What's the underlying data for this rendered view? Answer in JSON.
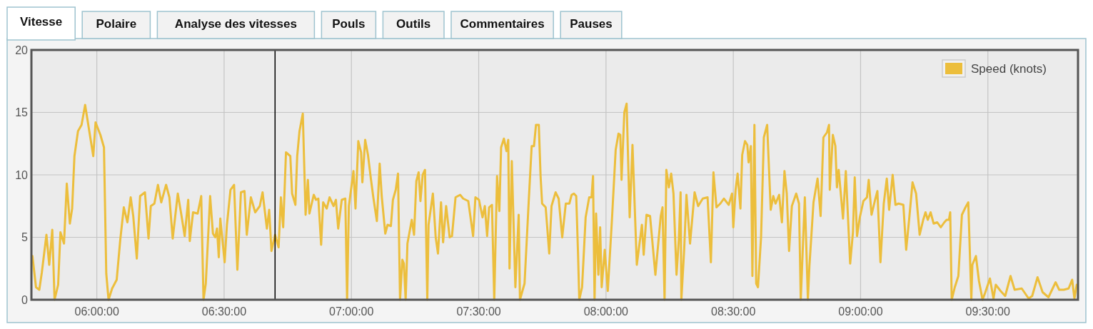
{
  "chart_data": {
    "type": "line",
    "annotations": [
      "Vitesse",
      "Polaire",
      "Analyse des vitesses",
      "Pouls",
      "Outils",
      "Commentaires",
      "Pauses"
    ],
    "xlim": [
      5.743,
      9.854
    ],
    "ylim": [
      0,
      20
    ],
    "xticks": [
      {
        "value": 6,
        "label": "06:00:00"
      },
      {
        "value": 6.5,
        "label": "06:30:00"
      },
      {
        "value": 7,
        "label": "07:00:00"
      },
      {
        "value": 7.5,
        "label": "07:30:00"
      },
      {
        "value": 8,
        "label": "08:00:00"
      },
      {
        "value": 8.5,
        "label": "08:30:00"
      },
      {
        "value": 9,
        "label": "09:00:00"
      },
      {
        "value": 9.5,
        "label": "09:30:00"
      }
    ],
    "yticks": [
      0,
      5,
      10,
      15,
      20
    ],
    "grid": true,
    "legend": "top right",
    "marker": "none",
    "line_style": "solid",
    "ref_lines": [
      {
        "axis": "x",
        "value": 6.7,
        "color": "#000000"
      }
    ],
    "series": [
      {
        "name": "Speed (knots)",
        "color": "#ecbe3c",
        "x": [
          5.747,
          5.761,
          5.774,
          5.784,
          5.802,
          5.813,
          5.825,
          5.834,
          5.848,
          5.857,
          5.871,
          5.882,
          5.894,
          5.903,
          5.912,
          5.926,
          5.94,
          5.954,
          5.968,
          5.986,
          5.995,
          6.014,
          6.028,
          6.037,
          6.046,
          6.06,
          6.078,
          6.092,
          6.106,
          6.12,
          6.133,
          6.143,
          6.157,
          6.17,
          6.189,
          6.203,
          6.212,
          6.226,
          6.24,
          6.253,
          6.272,
          6.285,
          6.298,
          6.318,
          6.332,
          6.345,
          6.359,
          6.365,
          6.378,
          6.396,
          6.41,
          6.419,
          6.428,
          6.437,
          6.445,
          6.456,
          6.465,
          6.472,
          6.479,
          6.485,
          6.502,
          6.511,
          6.525,
          6.539,
          6.552,
          6.566,
          6.58,
          6.589,
          6.605,
          6.622,
          6.64,
          6.651,
          6.668,
          6.677,
          6.686,
          6.7,
          6.714,
          6.723,
          6.732,
          6.743,
          6.76,
          6.767,
          6.78,
          6.787,
          6.796,
          6.809,
          6.82,
          6.829,
          6.835,
          6.852,
          6.861,
          6.87,
          6.881,
          6.889,
          6.903,
          6.914,
          6.93,
          6.939,
          6.948,
          6.962,
          6.976,
          6.983,
          6.99,
          7.008,
          7.016,
          7.027,
          7.038,
          7.043,
          7.054,
          7.065,
          7.077,
          7.086,
          7.1,
          7.111,
          7.119,
          7.133,
          7.142,
          7.155,
          7.163,
          7.174,
          7.183,
          7.191,
          7.2,
          7.206,
          7.213,
          7.22,
          7.237,
          7.246,
          7.255,
          7.264,
          7.271,
          7.28,
          7.289,
          7.298,
          7.303,
          7.32,
          7.331,
          7.34,
          7.352,
          7.36,
          7.372,
          7.386,
          7.395,
          7.409,
          7.427,
          7.439,
          7.459,
          7.478,
          7.487,
          7.501,
          7.515,
          7.524,
          7.533,
          7.541,
          7.552,
          7.561,
          7.572,
          7.581,
          7.588,
          7.599,
          7.609,
          7.616,
          7.621,
          7.63,
          7.644,
          7.657,
          7.662,
          7.68,
          7.697,
          7.708,
          7.717,
          7.725,
          7.736,
          7.743,
          7.749,
          7.763,
          7.777,
          7.786,
          7.802,
          7.814,
          7.828,
          7.842,
          7.856,
          7.865,
          7.874,
          7.883,
          7.89,
          7.895,
          7.906,
          7.92,
          7.934,
          7.943,
          7.949,
          7.955,
          7.961,
          7.97,
          7.977,
          7.983,
          7.995,
          8.007,
          8.023,
          8.038,
          8.049,
          8.056,
          8.061,
          8.072,
          8.081,
          8.093,
          8.104,
          8.121,
          8.141,
          8.148,
          8.159,
          8.173,
          8.194,
          8.215,
          8.222,
          8.23,
          8.237,
          8.247,
          8.256,
          8.265,
          8.277,
          8.286,
          8.293,
          8.296,
          8.307,
          8.316,
          8.33,
          8.348,
          8.362,
          8.38,
          8.399,
          8.412,
          8.422,
          8.434,
          8.449,
          8.463,
          8.482,
          8.495,
          8.5,
          8.509,
          8.517,
          8.528,
          8.535,
          8.546,
          8.555,
          8.56,
          8.569,
          8.575,
          8.583,
          8.59,
          8.597,
          8.609,
          8.62,
          8.633,
          8.647,
          8.657,
          8.666,
          8.68,
          8.691,
          8.701,
          8.71,
          8.719,
          8.73,
          8.747,
          8.758,
          8.765,
          8.781,
          8.793,
          8.799,
          8.815,
          8.831,
          8.843,
          8.854,
          8.868,
          8.876,
          8.879,
          8.891,
          8.901,
          8.907,
          8.914,
          8.931,
          8.942,
          8.959,
          8.97,
          8.977,
          8.986,
          8.997,
          9.011,
          9.025,
          9.032,
          9.043,
          9.057,
          9.066,
          9.078,
          9.091,
          9.103,
          9.112,
          9.126,
          9.137,
          9.149,
          9.168,
          9.179,
          9.191,
          9.204,
          9.218,
          9.232,
          9.246,
          9.255,
          9.264,
          9.275,
          9.287,
          9.301,
          9.315,
          9.329,
          9.338,
          9.347,
          9.352,
          9.358,
          9.37,
          9.384,
          9.398,
          9.412,
          9.423,
          9.435,
          9.439,
          9.453,
          9.465,
          9.479,
          9.49,
          9.508,
          9.522,
          9.531,
          9.55,
          9.568,
          9.589,
          9.605,
          9.633,
          9.66,
          9.674,
          9.695,
          9.715,
          9.738,
          9.766,
          9.78,
          9.798,
          9.817,
          9.831,
          9.84,
          9.849
        ],
        "values": [
          3.5,
          1,
          0.8,
          2.2,
          5.2,
          2.8,
          5.6,
          0,
          1.2,
          5.4,
          4.5,
          9.3,
          6.1,
          7.3,
          11.5,
          13.5,
          14,
          15.6,
          13.8,
          11.5,
          14.2,
          13.2,
          12.2,
          2.1,
          0,
          0.9,
          1.6,
          4.8,
          7.4,
          6.2,
          8.2,
          6.7,
          3.3,
          8.3,
          8.6,
          4.9,
          7.5,
          7.7,
          9.2,
          7.8,
          9.2,
          8.2,
          4.9,
          8.5,
          6.8,
          5.1,
          8,
          4.7,
          7,
          6.9,
          8.3,
          0,
          1.3,
          5,
          8.3,
          5.3,
          5,
          5.7,
          3.4,
          6.5,
          3,
          6,
          8.8,
          9.2,
          2.4,
          8.6,
          8.7,
          5.2,
          8.2,
          7,
          7.5,
          8.6,
          5.7,
          7.2,
          3.9,
          5.2,
          4.2,
          8.2,
          5.8,
          11.8,
          11.5,
          8.5,
          7.6,
          11.5,
          13.5,
          14.9,
          6.8,
          9.6,
          6.9,
          8.4,
          8,
          8.1,
          4.4,
          7.8,
          7.3,
          8.2,
          7.5,
          8,
          5.7,
          8,
          8.1,
          0,
          7.5,
          10.3,
          7.3,
          12.7,
          11.8,
          9.4,
          12.8,
          11.6,
          9.6,
          8.2,
          6.3,
          10.9,
          8.3,
          5.3,
          6,
          5.9,
          8,
          8.8,
          10.1,
          0,
          3.2,
          2.9,
          0,
          4.5,
          6.4,
          5.2,
          9.5,
          10.2,
          7.9,
          10,
          10.4,
          0,
          6,
          8.5,
          5,
          3.7,
          7.8,
          4.6,
          7.5,
          5,
          5.1,
          8.2,
          8.4,
          8.1,
          7.9,
          5.1,
          8.2,
          8,
          6.6,
          7.5,
          5.1,
          7.4,
          7.6,
          0,
          9.9,
          7.1,
          12.2,
          12.9,
          11.9,
          12.8,
          2.5,
          11.1,
          1,
          6.8,
          0,
          1.3,
          8.1,
          12.3,
          12.3,
          14,
          14,
          9.9,
          7.7,
          7.4,
          3.7,
          7.5,
          8.6,
          8.1,
          5,
          7.7,
          7.7,
          8.4,
          8.5,
          8.3,
          3.8,
          0,
          1,
          6.6,
          8.2,
          8.2,
          9.9,
          0,
          6.9,
          2,
          5.8,
          1,
          4,
          0.7,
          6.3,
          12,
          13.3,
          13.2,
          9.6,
          15,
          15.7,
          6.6,
          12.4,
          2.8,
          6,
          3.6,
          6.8,
          6.7,
          2,
          6.7,
          7.4,
          0,
          10.4,
          9,
          10.1,
          8.5,
          2,
          4.8,
          8.6,
          0,
          4,
          8.4,
          4.5,
          8.6,
          7.5,
          8.1,
          8.2,
          3,
          10.2,
          7.4,
          7.7,
          8.1,
          7.6,
          8.5,
          5.8,
          8.8,
          10.1,
          7.3,
          11.6,
          12.7,
          12.4,
          11,
          12.3,
          1.9,
          14,
          1.3,
          1,
          5,
          13,
          14,
          7.2,
          8.3,
          7.7,
          8.4,
          6.2,
          10.3,
          8.5,
          3.9,
          7.5,
          8.5,
          7.7,
          0,
          8.2,
          0,
          2.7,
          7.8,
          9.7,
          6.7,
          13,
          13.4,
          14,
          8.8,
          13.2,
          12.3,
          9,
          10.4,
          6.5,
          10.3,
          2.9,
          5.4,
          9.8,
          5.1,
          6.6,
          7.9,
          8.2,
          9.6,
          6.8,
          8,
          8.7,
          3,
          7.7,
          9.7,
          7.2,
          10,
          7.6,
          7.7,
          7.6,
          4,
          6.5,
          9.4,
          8.5,
          5.2,
          6.4,
          7,
          6.4,
          7,
          6.1,
          6.2,
          5.8,
          6.2,
          6.4,
          6.4,
          7,
          0,
          1,
          1.9,
          6.8,
          7.4,
          7.8,
          0,
          2.8,
          3.5,
          1.5,
          0,
          0.6,
          1.7,
          0.1,
          1.2,
          0.7,
          0.3,
          1.9,
          0.8,
          0.9,
          0.1,
          0.3,
          1.8,
          0.6,
          0.2,
          1.4,
          0.8,
          0.8,
          0.9,
          1.6,
          0.1,
          1.2
        ]
      }
    ]
  }
}
